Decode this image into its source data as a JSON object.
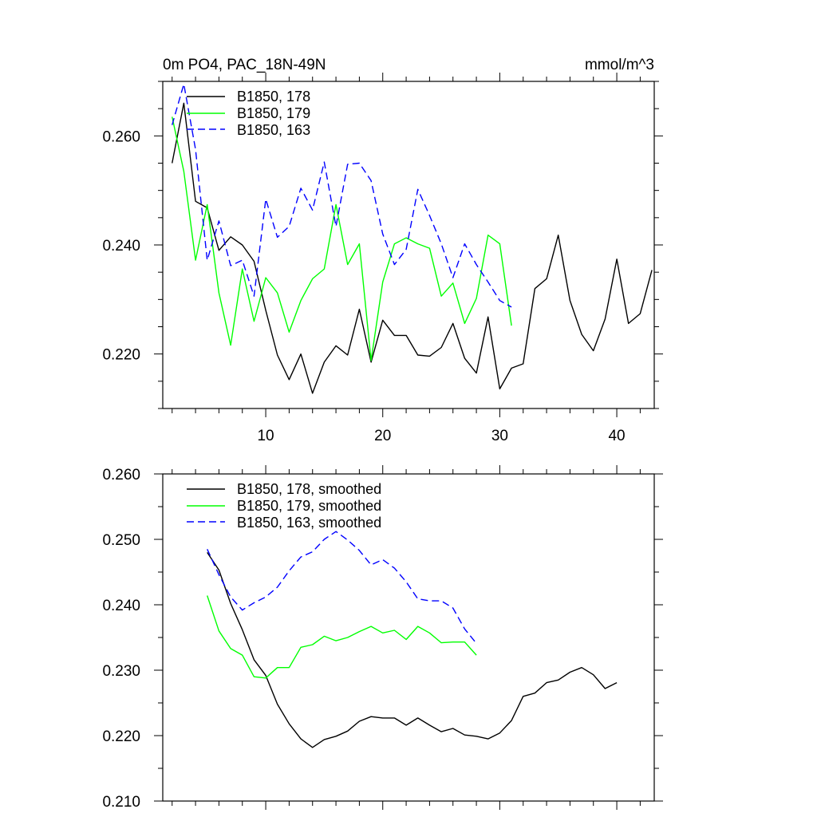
{
  "chart_data": [
    {
      "type": "line",
      "title": "0m PO4, PAC_18N-49N",
      "units": "mmol/m^3",
      "xlim": [
        1.2,
        43.2
      ],
      "ylim": [
        0.21,
        0.27
      ],
      "xticks": [
        10,
        20,
        30,
        40
      ],
      "xticklabels": [
        "10",
        "20",
        "30",
        "40"
      ],
      "yticks": [
        0.22,
        0.24,
        0.26
      ],
      "yticklabels": [
        "0.220",
        "0.240",
        "0.260"
      ],
      "legend_position": "top-left",
      "series": [
        {
          "name": "B1850, 178",
          "color": "#000000",
          "dash": "solid",
          "x_start": 2,
          "values": [
            0.255,
            0.266,
            0.248,
            0.2468,
            0.239,
            0.2415,
            0.24,
            0.237,
            0.228,
            0.2198,
            0.2153,
            0.22,
            0.2128,
            0.2185,
            0.2215,
            0.2198,
            0.2282,
            0.2185,
            0.2262,
            0.2234,
            0.2234,
            0.2198,
            0.2196,
            0.2212,
            0.2256,
            0.2192,
            0.2165,
            0.2268,
            0.2136,
            0.2174,
            0.2182,
            0.232,
            0.2338,
            0.2418,
            0.2298,
            0.2236,
            0.2206,
            0.2264,
            0.2374,
            0.2256,
            0.2274,
            0.2354
          ]
        },
        {
          "name": "B1850, 179",
          "color": "#00ff00",
          "dash": "solid",
          "x_start": 2,
          "values": [
            0.2635,
            0.2535,
            0.2372,
            0.2474,
            0.2312,
            0.2216,
            0.2356,
            0.226,
            0.234,
            0.2312,
            0.224,
            0.2298,
            0.2338,
            0.2356,
            0.2474,
            0.2364,
            0.2402,
            0.2188,
            0.2332,
            0.2402,
            0.2413,
            0.2402,
            0.2394,
            0.2306,
            0.233,
            0.2256,
            0.2302,
            0.2418,
            0.2402,
            0.2252
          ]
        },
        {
          "name": "B1850, 163",
          "color": "#0000ff",
          "dash": "dashed",
          "x_start": 2,
          "values": [
            0.262,
            0.2695,
            0.2575,
            0.2372,
            0.2444,
            0.2362,
            0.2372,
            0.2306,
            0.2484,
            0.2414,
            0.2434,
            0.2504,
            0.2464,
            0.2552,
            0.2434,
            0.2548,
            0.255,
            0.2518,
            0.242,
            0.2364,
            0.2392,
            0.2502,
            0.2454,
            0.2402,
            0.234,
            0.2402,
            0.2364,
            0.2332,
            0.2298,
            0.2286
          ]
        }
      ]
    },
    {
      "type": "line",
      "title": "",
      "xlim": [
        1.2,
        43.2
      ],
      "ylim": [
        0.21,
        0.26
      ],
      "xticks": [
        10,
        20,
        30,
        40
      ],
      "xticklabels": [],
      "yticks": [
        0.21,
        0.22,
        0.23,
        0.24,
        0.25,
        0.26
      ],
      "yticklabels": [
        "0.210",
        "0.220",
        "0.230",
        "0.240",
        "0.250",
        "0.260"
      ],
      "legend_position": "top-left",
      "series": [
        {
          "name": "B1850, 178, smoothed",
          "color": "#000000",
          "dash": "solid",
          "x_start": 5,
          "values": [
            0.248,
            0.2453,
            0.2402,
            0.2362,
            0.2316,
            0.2292,
            0.2248,
            0.2218,
            0.2195,
            0.2182,
            0.2194,
            0.2199,
            0.2207,
            0.2222,
            0.2229,
            0.2227,
            0.2227,
            0.2216,
            0.2227,
            0.2216,
            0.2206,
            0.2211,
            0.2201,
            0.2199,
            0.2195,
            0.2204,
            0.2223,
            0.226,
            0.2265,
            0.2281,
            0.2285,
            0.2297,
            0.2304,
            0.2293,
            0.2272,
            0.2281
          ]
        },
        {
          "name": "B1850, 179, smoothed",
          "color": "#00ff00",
          "dash": "solid",
          "x_start": 5,
          "values": [
            0.2414,
            0.236,
            0.2333,
            0.2323,
            0.229,
            0.2288,
            0.2304,
            0.2304,
            0.2335,
            0.2339,
            0.2352,
            0.2345,
            0.235,
            0.2359,
            0.2367,
            0.2357,
            0.2361,
            0.2347,
            0.2367,
            0.2357,
            0.2342,
            0.2343,
            0.2343,
            0.2323
          ]
        },
        {
          "name": "B1850, 163, smoothed",
          "color": "#0000ff",
          "dash": "dashed",
          "x_start": 5,
          "values": [
            0.2485,
            0.2446,
            0.2412,
            0.2392,
            0.2403,
            0.2412,
            0.2427,
            0.2452,
            0.2473,
            0.2481,
            0.25,
            0.2512,
            0.2499,
            0.2483,
            0.2461,
            0.2469,
            0.2456,
            0.2435,
            0.2409,
            0.2406,
            0.2406,
            0.2395,
            0.2363,
            0.2341
          ]
        }
      ]
    }
  ]
}
